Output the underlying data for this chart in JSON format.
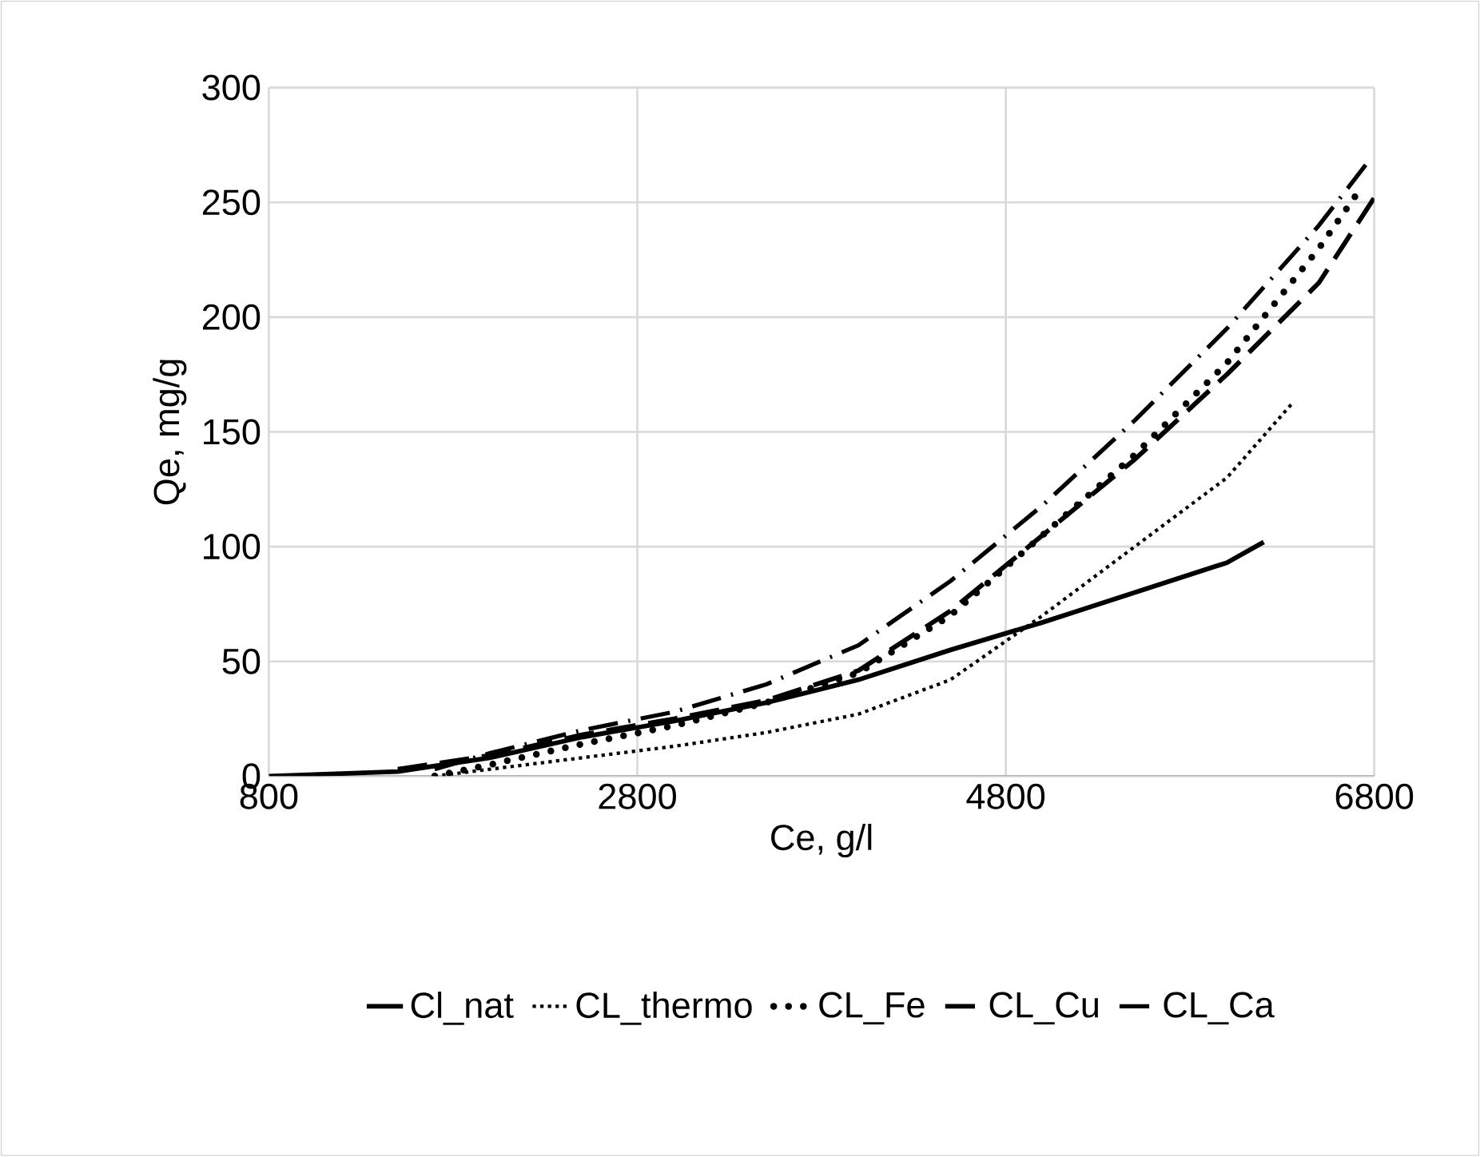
{
  "chart_data": {
    "type": "line",
    "xlabel": "Ce, g/l",
    "ylabel": "Qe, mg/g",
    "xlim": [
      800,
      6800
    ],
    "ylim": [
      0,
      300
    ],
    "xticks": [
      800,
      2800,
      4800,
      6800
    ],
    "yticks": [
      0,
      50,
      100,
      150,
      200,
      250,
      300
    ],
    "grid": true,
    "legend": "bottom",
    "marker": "none",
    "series": [
      {
        "name": "Cl_nat",
        "color": "#000000",
        "line_style": "solid",
        "x": [
          800,
          1500,
          2000,
          2500,
          3000,
          3500,
          4000,
          4500,
          5000,
          5500,
          6000,
          6200
        ],
        "values": [
          0,
          2,
          8,
          17,
          24,
          32,
          42,
          55,
          67,
          80,
          93,
          102
        ]
      },
      {
        "name": "CL_thermo",
        "color": "#000000",
        "line_style": "dotted",
        "x": [
          1700,
          2000,
          2500,
          3000,
          3500,
          4000,
          4500,
          5000,
          5500,
          6000,
          6350
        ],
        "values": [
          0,
          3,
          8,
          13,
          19,
          27,
          42,
          70,
          100,
          130,
          162
        ]
      },
      {
        "name": "CL_Fe",
        "color": "#000000",
        "line_style": "bigdots",
        "x": [
          1700,
          2000,
          2500,
          3000,
          3500,
          4000,
          4500,
          5000,
          5500,
          6000,
          6500,
          6700
        ],
        "values": [
          0,
          5,
          14,
          22,
          32,
          45,
          70,
          105,
          140,
          180,
          230,
          253
        ]
      },
      {
        "name": "CL_Cu",
        "color": "#000000",
        "line_style": "dashed",
        "x": [
          1500,
          2000,
          2500,
          3000,
          3500,
          4000,
          4500,
          5000,
          5500,
          6000,
          6500,
          6800
        ],
        "values": [
          3,
          9,
          18,
          25,
          33,
          46,
          72,
          105,
          138,
          175,
          215,
          252
        ]
      },
      {
        "name": "CL_Ca",
        "color": "#000000",
        "line_style": "dashdot",
        "x": [
          1700,
          2000,
          2500,
          3000,
          3500,
          4000,
          4500,
          5000,
          5500,
          6000,
          6500,
          6760
        ],
        "values": [
          3,
          10,
          20,
          28,
          40,
          57,
          85,
          118,
          155,
          195,
          240,
          267
        ]
      }
    ]
  }
}
